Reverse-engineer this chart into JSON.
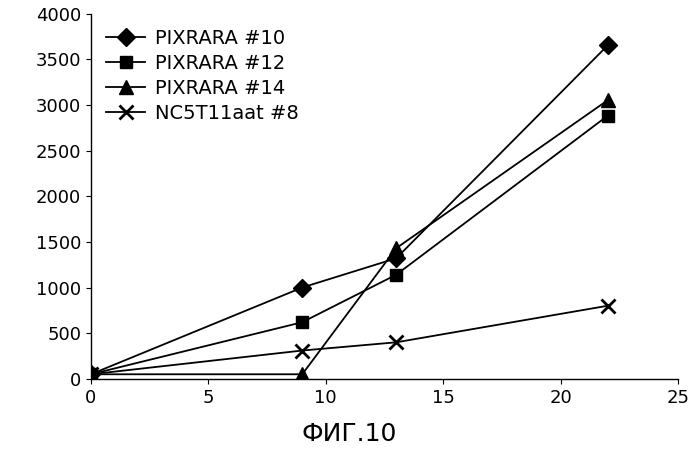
{
  "series": [
    {
      "label": "PIXRARA #10",
      "x": [
        0,
        9,
        13,
        22
      ],
      "y": [
        50,
        1000,
        1320,
        3650
      ],
      "marker": "D",
      "fillstyle": "full",
      "markersize": 9
    },
    {
      "label": "PIXRARA #12",
      "x": [
        0,
        9,
        13,
        22
      ],
      "y": [
        50,
        620,
        1140,
        2880
      ],
      "marker": "s",
      "fillstyle": "full",
      "markersize": 9
    },
    {
      "label": "PIXRARA #14",
      "x": [
        0,
        9,
        13,
        22
      ],
      "y": [
        50,
        50,
        1430,
        3050
      ],
      "marker": "^",
      "fillstyle": "full",
      "markersize": 10
    },
    {
      "label": "NC5T11aat #8",
      "x": [
        0,
        9,
        13,
        22
      ],
      "y": [
        50,
        310,
        400,
        800
      ],
      "marker": "x",
      "fillstyle": "full",
      "markersize": 10
    }
  ],
  "xlim": [
    0,
    25
  ],
  "ylim": [
    0,
    4000
  ],
  "xticks": [
    0,
    5,
    10,
    15,
    20,
    25
  ],
  "yticks": [
    0,
    500,
    1000,
    1500,
    2000,
    2500,
    3000,
    3500,
    4000
  ],
  "background_color": "#ffffff",
  "legend_loc": "upper left",
  "legend_fontsize": 14,
  "tick_fontsize": 13,
  "figsize": [
    6.99,
    4.51
  ],
  "dpi": 100,
  "title": "ФИГ.10",
  "title_fontsize": 18,
  "linewidth": 1.3
}
